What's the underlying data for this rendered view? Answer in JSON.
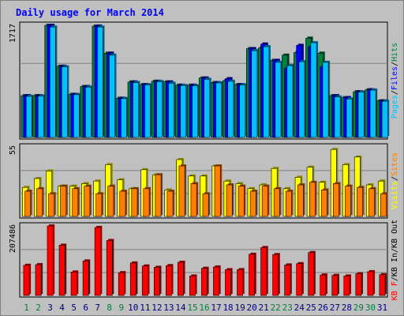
{
  "chart_data": {
    "type": "bar",
    "title": "Daily usage for March 2014",
    "categories": [
      "1",
      "2",
      "3",
      "4",
      "5",
      "6",
      "7",
      "8",
      "9",
      "10",
      "11",
      "12",
      "13",
      "14",
      "15",
      "16",
      "17",
      "18",
      "19",
      "20",
      "21",
      "22",
      "23",
      "24",
      "25",
      "26",
      "27",
      "28",
      "29",
      "30",
      "31"
    ],
    "weekend_days": [
      "1",
      "2",
      "8",
      "9",
      "15",
      "16",
      "22",
      "23",
      "29",
      "30"
    ],
    "panels": [
      {
        "id": "top",
        "ymax_label": "1717",
        "ymax": 1717,
        "right_label": [
          "Pages",
          "/",
          "Files",
          "/",
          "Hits"
        ],
        "series": [
          {
            "name": "Hits",
            "color": "#008040",
            "values": [
              640,
              640,
              1717,
              1090,
              660,
              780,
              1705,
              1290,
              600,
              850,
              810,
              860,
              850,
              800,
              800,
              910,
              840,
              870,
              810,
              1360,
              1370,
              1180,
              1260,
              1300,
              1520,
              1290,
              640,
              610,
              700,
              730,
              560
            ]
          },
          {
            "name": "Files",
            "color": "#0000ff",
            "values": [
              640,
              640,
              1717,
              1090,
              660,
              780,
              1705,
              1290,
              600,
              850,
              810,
              860,
              850,
              800,
              800,
              910,
              840,
              900,
              810,
              1360,
              1430,
              1180,
              1060,
              1410,
              1390,
              1080,
              640,
              610,
              700,
              730,
              560
            ]
          },
          {
            "name": "Pages",
            "color": "#00c0ff",
            "values": [
              630,
              635,
              1690,
              1080,
              655,
              770,
              1690,
              1260,
              595,
              840,
              805,
              855,
              830,
              795,
              790,
              890,
              835,
              860,
              805,
              1330,
              1390,
              1150,
              1100,
              1160,
              1450,
              1150,
              620,
              590,
              695,
              725,
              555
            ]
          }
        ]
      },
      {
        "id": "mid",
        "ymax_label": "55",
        "ymax": 55,
        "right_label": [
          "Visits",
          "/",
          "Sites"
        ],
        "series": [
          {
            "name": "Visits",
            "color": "#ffff00",
            "values": [
              23,
              30,
              36,
              24,
              24,
              26,
              28,
              41,
              29,
              22,
              37,
              33,
              21,
              45,
              32,
              32,
              40,
              28,
              26,
              22,
              25,
              38,
              22,
              31,
              39,
              27,
              53,
              41,
              47,
              25,
              28
            ]
          },
          {
            "name": "Sites",
            "color": "#ff8000",
            "values": [
              20,
              22,
              18,
              24,
              22,
              24,
              18,
              24,
              20,
              22,
              22,
              33,
              20,
              40,
              26,
              18,
              40,
              25,
              24,
              20,
              24,
              22,
              20,
              25,
              27,
              21,
              26,
              24,
              23,
              22,
              18
            ]
          }
        ]
      },
      {
        "id": "bot",
        "ymax_label": "207486",
        "ymax": 207486,
        "right_label": [
          "KB F",
          "/",
          "KB In",
          "/",
          "KB Out"
        ],
        "series": [
          {
            "name": "KB F",
            "color": "#ff0000",
            "values": [
              90000,
              92000,
              207486,
              150000,
              70000,
              103000,
              203000,
              164000,
              68000,
              97000,
              88000,
              84000,
              89000,
              99000,
              58000,
              81000,
              85000,
              77000,
              77000,
              123000,
              143000,
              122000,
              91000,
              95000,
              128000,
              61000,
              60000,
              58000,
              65000,
              71000,
              62000
            ]
          }
        ]
      }
    ]
  }
}
